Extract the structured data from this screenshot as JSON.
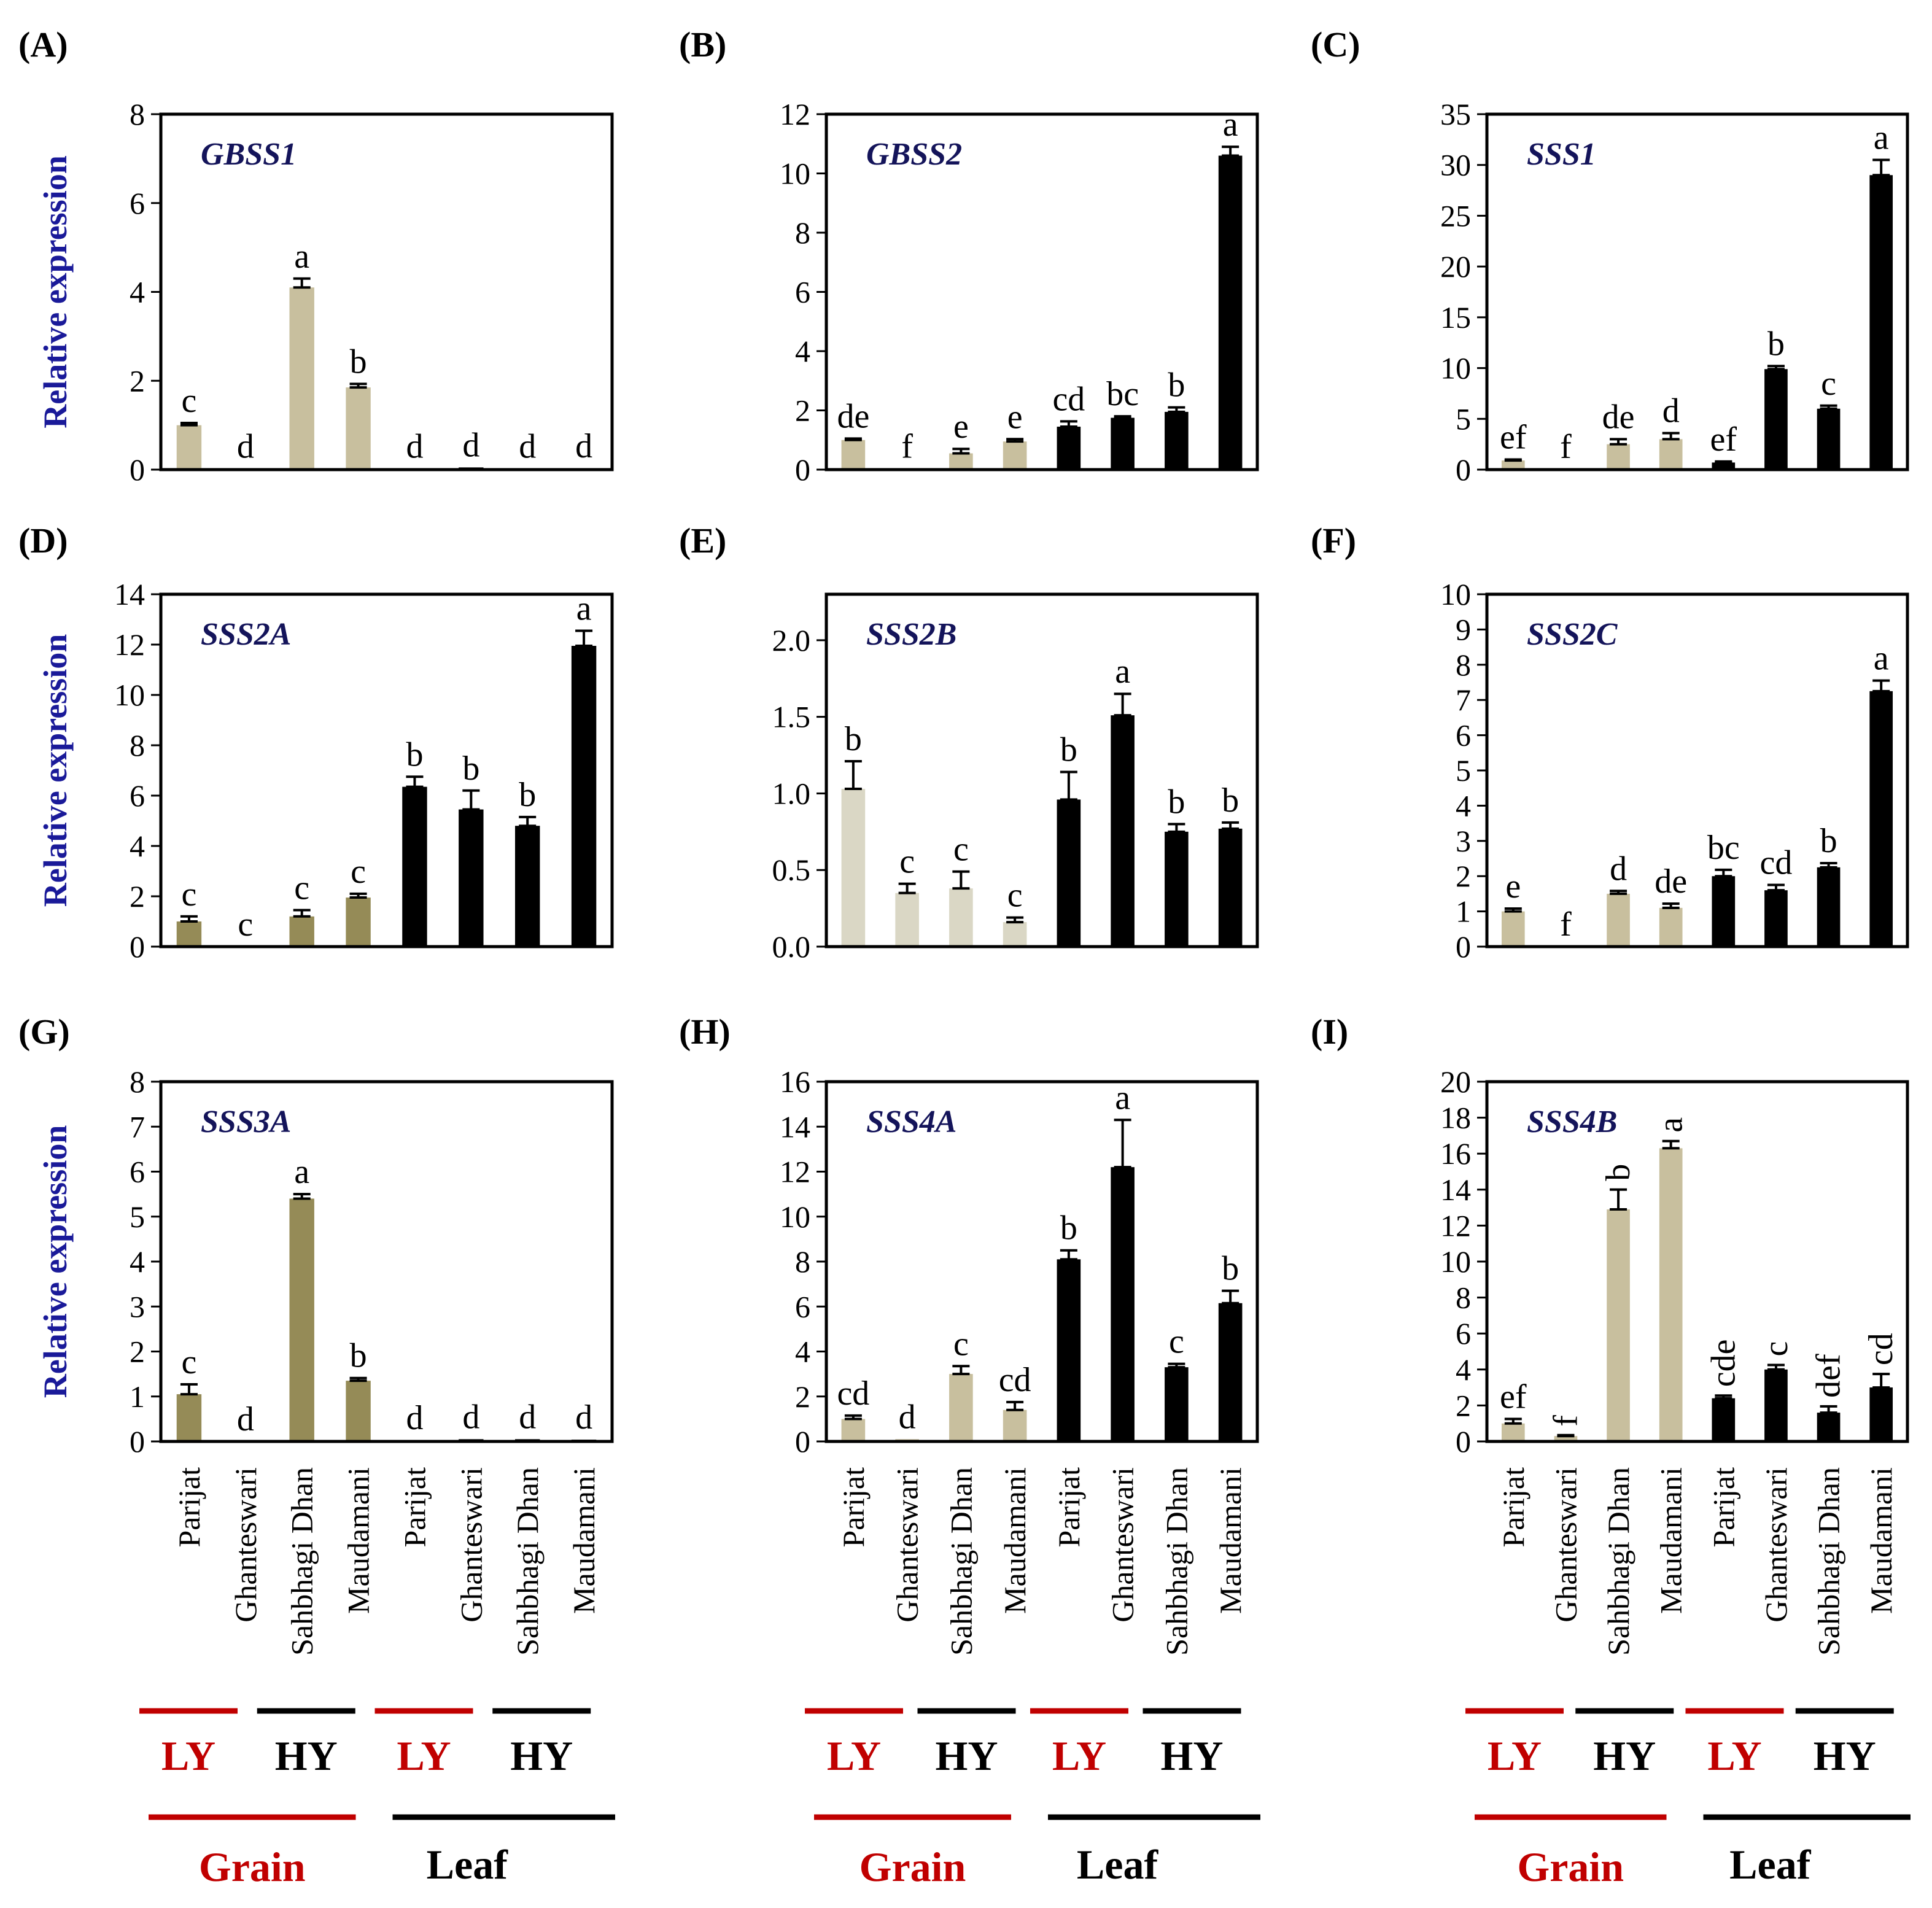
{
  "colors": {
    "grain": "#c8bf9e",
    "grain_dark": "#958b57",
    "grain_light": "#dad7c5",
    "leaf": "#000000",
    "ly": "#c00000",
    "gene_label": "#14145a",
    "ylabel": "#1a1a99"
  },
  "y_axis_label": "Relative expression",
  "x_categories": [
    "Parijat",
    "Ghanteswari",
    "Sahbhagi Dhan",
    "Maudamani",
    "Parijat",
    "Ghanteswari",
    "Sahbhagi Dhan",
    "Maudamani"
  ],
  "group_labels": {
    "ly": "LY",
    "hy": "HY",
    "grain": "Grain",
    "leaf": "Leaf"
  },
  "chart_data": [
    {
      "type": "bar",
      "panel": "(A)",
      "title": "GBSS1",
      "ylim": [
        0,
        8
      ],
      "ticks": [
        "0",
        "2",
        "4",
        "6",
        "8"
      ],
      "values": [
        1.0,
        0.02,
        4.1,
        1.85,
        0.02,
        0.05,
        0.02,
        0.03
      ],
      "errors": [
        0.05,
        0.0,
        0.2,
        0.08,
        0.0,
        0.0,
        0.0,
        0.0
      ],
      "letters": [
        "c",
        "d",
        "a",
        "b",
        "d",
        "d",
        "d",
        "d"
      ],
      "color_keys": [
        "grain",
        "grain",
        "grain",
        "grain",
        "leaf",
        "leaf",
        "leaf",
        "leaf"
      ]
    },
    {
      "type": "bar",
      "panel": "(B)",
      "title": "GBSS2",
      "ylim": [
        0,
        12
      ],
      "ticks": [
        "0",
        "2",
        "4",
        "6",
        "8",
        "10",
        "12"
      ],
      "values": [
        1.0,
        0.03,
        0.55,
        0.95,
        1.45,
        1.75,
        1.95,
        10.6
      ],
      "errors": [
        0.05,
        0.0,
        0.15,
        0.08,
        0.18,
        0.05,
        0.15,
        0.3
      ],
      "letters": [
        "de",
        "f",
        "e",
        "e",
        "cd",
        "bc",
        "b",
        "a"
      ],
      "color_keys": [
        "grain",
        "grain",
        "grain",
        "grain",
        "leaf",
        "leaf",
        "leaf",
        "leaf"
      ]
    },
    {
      "type": "bar",
      "panel": "(C)",
      "title": "SSS1",
      "ylim": [
        0,
        35
      ],
      "ticks": [
        "0",
        "5",
        "10",
        "15",
        "20",
        "25",
        "30",
        "35"
      ],
      "values": [
        0.9,
        0.05,
        2.5,
        3.0,
        0.7,
        9.9,
        6.0,
        29.0
      ],
      "errors": [
        0.1,
        0.0,
        0.5,
        0.6,
        0.1,
        0.3,
        0.3,
        1.5
      ],
      "letters": [
        "ef",
        "f",
        "de",
        "d",
        "ef",
        "b",
        "c",
        "a"
      ],
      "color_keys": [
        "grain",
        "grain",
        "grain",
        "grain",
        "leaf",
        "leaf",
        "leaf",
        "leaf"
      ]
    },
    {
      "type": "bar",
      "panel": "(D)",
      "title": "SSS2A",
      "ylim": [
        0,
        14
      ],
      "ticks": [
        "0",
        "2",
        "4",
        "6",
        "8",
        "10",
        "12",
        "14"
      ],
      "values": [
        1.0,
        0.0,
        1.2,
        1.95,
        6.35,
        5.45,
        4.8,
        11.95
      ],
      "errors": [
        0.2,
        0.0,
        0.25,
        0.15,
        0.4,
        0.75,
        0.35,
        0.6
      ],
      "letters": [
        "c",
        "c",
        "c",
        "c",
        "b",
        "b",
        "b",
        "a"
      ],
      "color_keys": [
        "grain_dark",
        "grain_dark",
        "grain_dark",
        "grain_dark",
        "leaf",
        "leaf",
        "leaf",
        "leaf"
      ]
    },
    {
      "type": "bar",
      "panel": "(E)",
      "title": "SSS2B",
      "ylim": [
        0,
        2.3
      ],
      "ticks": [
        "0.0",
        "0.5",
        "1.0",
        "1.5",
        "2.0"
      ],
      "tick_values": [
        0,
        0.5,
        1.0,
        1.5,
        2.0
      ],
      "values": [
        1.03,
        0.35,
        0.38,
        0.16,
        0.96,
        1.51,
        0.75,
        0.77
      ],
      "errors": [
        0.18,
        0.06,
        0.11,
        0.03,
        0.18,
        0.14,
        0.05,
        0.04
      ],
      "letters": [
        "b",
        "c",
        "c",
        "c",
        "b",
        "a",
        "b",
        "b"
      ],
      "color_keys": [
        "grain_light",
        "grain_light",
        "grain_light",
        "grain_light",
        "leaf",
        "leaf",
        "leaf",
        "leaf"
      ]
    },
    {
      "type": "bar",
      "panel": "(F)",
      "title": "SSS2C",
      "ylim": [
        0,
        10
      ],
      "ticks": [
        "0",
        "1",
        "2",
        "3",
        "4",
        "5",
        "6",
        "7",
        "8",
        "9",
        "10"
      ],
      "values": [
        1.0,
        0.0,
        1.5,
        1.1,
        2.0,
        1.6,
        2.25,
        7.25
      ],
      "errors": [
        0.08,
        0.0,
        0.08,
        0.12,
        0.18,
        0.15,
        0.12,
        0.3
      ],
      "letters": [
        "e",
        "f",
        "d",
        "de",
        "bc",
        "cd",
        "b",
        "a"
      ],
      "color_keys": [
        "grain",
        "grain",
        "grain",
        "grain",
        "leaf",
        "leaf",
        "leaf",
        "leaf"
      ]
    },
    {
      "type": "bar",
      "panel": "(G)",
      "title": "SSS3A",
      "ylim": [
        0,
        8
      ],
      "ticks": [
        "0",
        "1",
        "2",
        "3",
        "4",
        "5",
        "6",
        "7",
        "8"
      ],
      "values": [
        1.05,
        0.0,
        5.4,
        1.35,
        0.03,
        0.05,
        0.05,
        0.04
      ],
      "errors": [
        0.22,
        0.0,
        0.1,
        0.06,
        0.0,
        0.0,
        0.0,
        0.0
      ],
      "letters": [
        "c",
        "d",
        "a",
        "b",
        "d",
        "d",
        "d",
        "d"
      ],
      "color_keys": [
        "grain_dark",
        "grain_dark",
        "grain_dark",
        "grain_dark",
        "leaf",
        "leaf",
        "leaf",
        "leaf"
      ]
    },
    {
      "type": "bar",
      "panel": "(H)",
      "title": "SSS4A",
      "ylim": [
        0,
        16
      ],
      "ticks": [
        "0",
        "2",
        "4",
        "6",
        "8",
        "10",
        "12",
        "14",
        "16"
      ],
      "values": [
        1.0,
        0.1,
        3.0,
        1.4,
        8.1,
        12.2,
        3.3,
        6.15
      ],
      "errors": [
        0.15,
        0.0,
        0.35,
        0.35,
        0.4,
        2.1,
        0.15,
        0.55
      ],
      "letters": [
        "cd",
        "d",
        "c",
        "cd",
        "b",
        "a",
        "c",
        "b"
      ],
      "color_keys": [
        "grain",
        "grain",
        "grain",
        "grain",
        "leaf",
        "leaf",
        "leaf",
        "leaf"
      ]
    },
    {
      "type": "bar",
      "panel": "(I)",
      "title": "SSS4B",
      "ylim": [
        0,
        20
      ],
      "ticks": [
        "0",
        "2",
        "4",
        "6",
        "8",
        "10",
        "12",
        "14",
        "16",
        "18",
        "20"
      ],
      "values": [
        1.0,
        0.3,
        12.9,
        16.3,
        2.4,
        4.0,
        1.6,
        3.0
      ],
      "errors": [
        0.25,
        0.05,
        1.1,
        0.4,
        0.15,
        0.25,
        0.35,
        0.75
      ],
      "letters": [
        "ef",
        "f",
        "b",
        "a",
        "cde",
        "c",
        "def",
        "cd"
      ],
      "color_keys": [
        "grain",
        "grain",
        "grain",
        "grain",
        "leaf",
        "leaf",
        "leaf",
        "leaf"
      ]
    }
  ]
}
